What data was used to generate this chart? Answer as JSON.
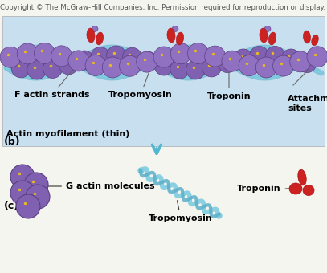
{
  "bg_color": "#f5f5f0",
  "top_panel_bg": "#c8dff0",
  "copyright_text": "Copyright © The McGraw-Hill Companies, Inc. Permission required for reproduction or display.",
  "copyright_fontsize": 6.2,
  "panel_b_label": "(b)",
  "panel_c_label": "(c)",
  "actin_color": "#8060b0",
  "actin_color2": "#9070c0",
  "actin_outline": "#5a3f80",
  "tropomyosin_color": "#70b8d8",
  "troponin_color": "#cc2222",
  "troponin_dark": "#aa1111",
  "yellow_dot_color": "#e8b820",
  "arrow_color": "#50b8d0",
  "label_color": "#000000",
  "label_fontsize": 7.5,
  "bold_label_fontsize": 8,
  "actin_myofilament_label": "Actin myofilament (thin)",
  "f_actin_label": "F actin strands",
  "tropomyosin_label": "Tropomyosin",
  "troponin_label": "Troponin",
  "attachment_label": "Attachment\nsites",
  "g_actin_label": "G actin molecules",
  "tropomyosin_c_label": "Tropomyosin",
  "troponin_c_label": "Troponin"
}
